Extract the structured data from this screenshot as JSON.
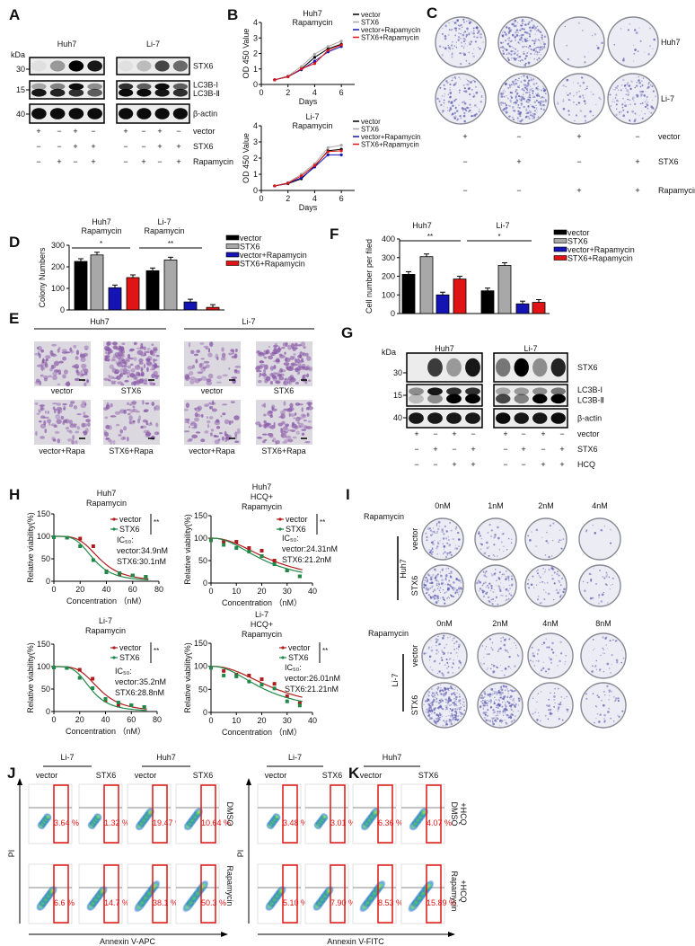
{
  "panel_letters": [
    "A",
    "B",
    "C",
    "D",
    "E",
    "F",
    "G",
    "H",
    "I",
    "J",
    "K"
  ],
  "colors": {
    "vector": "#000000",
    "STX6": "#a8a8a8",
    "vector_rapa": "#1414b4",
    "STX6_rapa": "#e01414",
    "h_vector": "#b01c1c",
    "h_STX6": "#1f8a48",
    "flow_gate": "#e01414",
    "dish_stain": "#5a5ab0",
    "micro_stain": "#8a5aa8"
  },
  "panel_a": {
    "kda": "kDa",
    "cells": [
      "Huh7",
      "Li-7"
    ],
    "markers": [
      "30",
      "15",
      "40"
    ],
    "bands": [
      "STX6",
      "LC3B-I",
      "LC3B-Ⅱ",
      "β-actin"
    ],
    "row_labels": [
      "vector",
      "STX6",
      "Rapamycin"
    ],
    "signs": [
      [
        "+",
        "−",
        "+",
        "−",
        "+",
        "−",
        "+",
        "−"
      ],
      [
        "−",
        "−",
        "+",
        "+",
        "−",
        "−",
        "+",
        "+"
      ],
      [
        "−",
        "+",
        "−",
        "+",
        "−",
        "+",
        "−",
        "+"
      ]
    ],
    "intensity": {
      "STX6": [
        [
          0.05,
          0.35,
          1,
          0.9
        ],
        [
          0.05,
          0.2,
          0.7,
          0.55
        ]
      ],
      "LC3B_I": [
        [
          0.3,
          0.45,
          0.95,
          0.4
        ],
        [
          0.8,
          0.6,
          0.95,
          0.6
        ]
      ],
      "LC3B_II": [
        [
          0.9,
          0.85,
          0.8,
          0.6
        ],
        [
          0.95,
          0.95,
          0.9,
          0.8
        ]
      ],
      "actin": [
        [
          0.95,
          0.95,
          0.95,
          0.95
        ],
        [
          0.95,
          0.95,
          0.95,
          0.95
        ]
      ]
    }
  },
  "panel_c": {
    "cells": [
      "Huh7",
      "Li-7"
    ],
    "row_labels": [
      "vector",
      "STX6",
      "Rapamycin"
    ],
    "signs": [
      [
        "+",
        "−",
        "+",
        "−"
      ],
      [
        "−",
        "+",
        "−",
        "+"
      ],
      [
        "−",
        "−",
        "+",
        "+"
      ]
    ],
    "colony_density": [
      [
        0.45,
        0.8,
        0.05,
        0.08
      ],
      [
        0.5,
        0.95,
        0.2,
        0.45
      ]
    ]
  },
  "panel_e": {
    "cells": [
      "Huh7",
      "Li-7"
    ],
    "labels": [
      [
        "vector",
        "STX6",
        "vector",
        "STX6"
      ],
      [
        "vector+Rapa",
        "STX6+Rapa",
        "vector+Rapa",
        "STX6+Rapa"
      ]
    ],
    "density": [
      [
        0.5,
        0.95,
        0.35,
        0.9
      ],
      [
        0.45,
        0.4,
        0.4,
        0.55
      ]
    ]
  },
  "panel_g": {
    "kda": "kDa",
    "cells": [
      "Huh7",
      "Li-7"
    ],
    "markers": [
      "30",
      "15",
      "40"
    ],
    "bands": [
      "STX6",
      "LC3B-I",
      "LC3B-Ⅱ",
      "β-actin"
    ],
    "row_labels": [
      "vector",
      "STX6",
      "HCQ"
    ],
    "signs": [
      [
        "+",
        "−",
        "+",
        "−",
        "+",
        "−",
        "+",
        "−"
      ],
      [
        "−",
        "+",
        "−",
        "+",
        "−",
        "+",
        "−",
        "+"
      ],
      [
        "−",
        "−",
        "+",
        "+",
        "−",
        "−",
        "+",
        "+"
      ]
    ],
    "intensity": {
      "STX6": [
        [
          0,
          0.75,
          0.35,
          0.9
        ],
        [
          0.5,
          1,
          0.4,
          0.85
        ]
      ],
      "LC3B_I": [
        [
          0.4,
          0.9,
          0.8,
          0.8
        ],
        [
          0.3,
          0.35,
          0.4,
          0.5
        ]
      ],
      "LC3B_II": [
        [
          0.2,
          0.4,
          1,
          1
        ],
        [
          0.7,
          0.45,
          1,
          1
        ]
      ],
      "actin": [
        [
          0.9,
          0.9,
          0.9,
          0.9
        ],
        [
          0.95,
          0.9,
          0.9,
          0.95
        ]
      ]
    }
  },
  "panel_i": {
    "drug_label": "Rapamycin",
    "blocks": [
      {
        "cell": "Huh7",
        "doses": [
          "0nM",
          "1nM",
          "2nM",
          "4nM"
        ],
        "rows": [
          "vector",
          "STX6"
        ],
        "density": [
          [
            0.3,
            0.15,
            0.08,
            0.03
          ],
          [
            0.55,
            0.35,
            0.2,
            0.12
          ]
        ]
      },
      {
        "cell": "Li-7",
        "doses": [
          "0nM",
          "2nM",
          "4nM",
          "8nM"
        ],
        "rows": [
          "vector",
          "STX6"
        ],
        "density": [
          [
            0.3,
            0.2,
            0.15,
            0.15
          ],
          [
            1,
            0.75,
            0.18,
            0.15
          ]
        ]
      }
    ]
  },
  "panel_j": {
    "cells": [
      "Li-7",
      "Huh7"
    ],
    "columns": [
      "vector",
      "STX6",
      "vector",
      "STX6"
    ],
    "rows": [
      "DMSO",
      "Rapamycin"
    ],
    "ylabel": "PI",
    "xlabel": "Annexin V-APC",
    "percents": [
      [
        "3.64 %",
        "1.32 %",
        "19.47 %",
        "10.64 %"
      ],
      [
        "6.6 %",
        "14.7 %",
        "38.1 %",
        "50.3 %"
      ]
    ]
  },
  "panel_k": {
    "cells": [
      "Li-7",
      "Huh7"
    ],
    "columns": [
      "vector",
      "STX6",
      "vector",
      "STX6"
    ],
    "rows": [
      [
        "DMSO",
        "+HCQ"
      ],
      [
        "Rapamycin",
        "+HCQ"
      ]
    ],
    "ylabel": "PI",
    "xlabel": "Annexin V-FITC",
    "percents": [
      [
        "3.48 %",
        "3.01 %",
        "6.36 %",
        "4.07 %"
      ],
      [
        "5.10 %",
        "7.90 %",
        "8.53 %",
        "15.89 %"
      ]
    ]
  },
  "chart_data": [
    {
      "id": "B1",
      "type": "line",
      "title": [
        "Huh7",
        "Rapamycin"
      ],
      "xlabel": "Days",
      "ylabel": "OD 450 Value",
      "xlim": [
        0,
        7
      ],
      "ylim": [
        0,
        4
      ],
      "xticks": [
        0,
        2,
        4,
        6
      ],
      "yticks": [
        0,
        1,
        2,
        3,
        4
      ],
      "x": [
        1,
        2,
        3,
        4,
        5,
        6
      ],
      "series": [
        {
          "name": "vector",
          "values": [
            0.3,
            0.5,
            1.0,
            1.75,
            2.3,
            2.6
          ]
        },
        {
          "name": "STX6",
          "values": [
            0.3,
            0.55,
            1.15,
            1.95,
            2.45,
            2.8
          ]
        },
        {
          "name": "vector+Rapamycin",
          "values": [
            0.3,
            0.5,
            0.95,
            1.5,
            2.1,
            2.45
          ]
        },
        {
          "name": "STX6+Rapamycin",
          "values": [
            0.3,
            0.5,
            1.0,
            1.35,
            2.2,
            2.55
          ]
        }
      ]
    },
    {
      "id": "B2",
      "type": "line",
      "title": [
        "Li-7",
        "Rapamycin"
      ],
      "xlabel": "Days",
      "ylabel": "OD 450 Value",
      "xlim": [
        0,
        7
      ],
      "ylim": [
        0,
        4
      ],
      "xticks": [
        0,
        2,
        4,
        6
      ],
      "yticks": [
        0,
        1,
        2,
        3,
        4
      ],
      "x": [
        1,
        2,
        3,
        4,
        5,
        6
      ],
      "series": [
        {
          "name": "vector",
          "values": [
            0.28,
            0.42,
            0.72,
            1.5,
            2.45,
            2.55
          ]
        },
        {
          "name": "STX6",
          "values": [
            0.28,
            0.48,
            1.0,
            1.65,
            2.65,
            2.8
          ]
        },
        {
          "name": "vector+Rapamycin",
          "values": [
            0.28,
            0.45,
            0.78,
            1.45,
            2.2,
            2.2
          ]
        },
        {
          "name": "STX6+Rapamycin",
          "values": [
            0.28,
            0.45,
            0.9,
            1.55,
            2.4,
            2.45
          ]
        }
      ]
    },
    {
      "id": "D",
      "type": "bar",
      "groups": [
        {
          "title": [
            "Huh7",
            "Rapamycin"
          ],
          "sig": "*"
        },
        {
          "title": [
            "Li-7",
            "Rapamycin"
          ],
          "sig": "**"
        }
      ],
      "ylabel": "Colony  Numbers",
      "ylim": [
        0,
        300
      ],
      "yticks": [
        0,
        100,
        200,
        300
      ],
      "series": [
        {
          "name": "vector",
          "values": [
            225,
            182
          ]
        },
        {
          "name": "STX6",
          "values": [
            255,
            232
          ]
        },
        {
          "name": "vector+Rapamycin",
          "values": [
            103,
            37
          ]
        },
        {
          "name": "STX6+Rapamycin",
          "values": [
            150,
            12
          ]
        }
      ]
    },
    {
      "id": "F",
      "type": "bar",
      "groups": [
        {
          "title": [
            "Huh7"
          ],
          "sig": "**"
        },
        {
          "title": [
            "Li-7"
          ],
          "sig": "*"
        }
      ],
      "ylabel": "Cell number per filed",
      "ylim": [
        0,
        400
      ],
      "yticks": [
        0,
        100,
        200,
        300,
        400
      ],
      "series": [
        {
          "name": "vector",
          "values": [
            210,
            122
          ]
        },
        {
          "name": "STX6",
          "values": [
            305,
            258
          ]
        },
        {
          "name": "vector+Rapamycin",
          "values": [
            100,
            52
          ]
        },
        {
          "name": "STX6+Rapamycin",
          "values": [
            185,
            60
          ]
        }
      ]
    },
    {
      "id": "H1",
      "type": "scatter",
      "title": [
        "Huh7",
        "Rapamycin"
      ],
      "xlabel": "Concentration （nM）",
      "ylabel": "Relative viability(%)",
      "xlim": [
        0,
        80
      ],
      "ylim": [
        0,
        150
      ],
      "xticks": [
        0,
        20,
        40,
        60,
        80
      ],
      "yticks": [
        0,
        50,
        100,
        150
      ],
      "sig": "**",
      "ic50_label": "IC₅₀:",
      "ic50_text": [
        "vector:34.9nM",
        "STX6:30.1nM"
      ],
      "ic50": [
        34.9,
        30.1
      ],
      "x": [
        0,
        10,
        20,
        30,
        40,
        50,
        60,
        70
      ],
      "series": [
        {
          "name": "vector",
          "values": [
            98,
            97,
            95,
            78,
            22,
            15,
            13,
            10
          ]
        },
        {
          "name": "STX6",
          "values": [
            98,
            97,
            78,
            47,
            20,
            18,
            13,
            10
          ]
        }
      ]
    },
    {
      "id": "H2",
      "type": "scatter",
      "title": [
        "Huh7",
        "HCQ+",
        "Rapamycin"
      ],
      "xlabel": "Concentration （nM）",
      "ylabel": "Relative viability(%)",
      "xlim": [
        0,
        40
      ],
      "ylim": [
        0,
        150
      ],
      "xticks": [
        0,
        10,
        20,
        30,
        40
      ],
      "yticks": [
        0,
        50,
        100,
        150
      ],
      "sig": "**",
      "ic50_label": "IC₅₀:",
      "ic50_text": [
        "vector:24.31nM",
        "STX6:21.2nM"
      ],
      "ic50": [
        24.31,
        21.2
      ],
      "x": [
        0,
        5,
        10,
        15,
        20,
        25,
        30,
        35
      ],
      "series": [
        {
          "name": "vector",
          "values": [
            97,
            93,
            92,
            78,
            72,
            50,
            28,
            15
          ]
        },
        {
          "name": "STX6",
          "values": [
            95,
            85,
            78,
            70,
            60,
            42,
            28,
            15
          ]
        }
      ]
    },
    {
      "id": "H3",
      "type": "scatter",
      "title": [
        "Li-7",
        "Rapamycin"
      ],
      "xlabel": "Concentration （nM）",
      "ylabel": "Relative viability(%)",
      "xlim": [
        0,
        80
      ],
      "ylim": [
        0,
        150
      ],
      "xticks": [
        0,
        20,
        40,
        60,
        80
      ],
      "yticks": [
        0,
        50,
        100,
        150
      ],
      "sig": "**",
      "ic50_label": "IC₅₀:",
      "ic50_text": [
        "vector:35.2nM",
        "STX6:28.8nM"
      ],
      "ic50": [
        35.2,
        28.8
      ],
      "x": [
        0,
        10,
        20,
        30,
        40,
        50,
        60,
        70
      ],
      "series": [
        {
          "name": "vector",
          "values": [
            98,
            97,
            93,
            73,
            25,
            13,
            14,
            10
          ]
        },
        {
          "name": "STX6",
          "values": [
            98,
            97,
            75,
            52,
            28,
            20,
            14,
            10
          ]
        }
      ]
    },
    {
      "id": "H4",
      "type": "scatter",
      "title": [
        "Li-7",
        "HCQ+",
        "Rapamycin"
      ],
      "xlabel": "Concentration （nM）",
      "ylabel": "Relative viability(%)",
      "xlim": [
        0,
        40
      ],
      "ylim": [
        0,
        150
      ],
      "xticks": [
        0,
        10,
        20,
        30,
        40
      ],
      "yticks": [
        0,
        50,
        100,
        150
      ],
      "sig": "**",
      "ic50_label": "IC₅₀:",
      "ic50_text": [
        "vector:26.01nM",
        "STX6:21.21nM"
      ],
      "ic50": [
        26.01,
        21.21
      ],
      "x": [
        0,
        5,
        10,
        15,
        20,
        25,
        30,
        35
      ],
      "series": [
        {
          "name": "vector",
          "values": [
            97,
            90,
            82,
            80,
            72,
            62,
            35,
            20
          ]
        },
        {
          "name": "STX6",
          "values": [
            97,
            80,
            78,
            67,
            60,
            52,
            24,
            15
          ]
        }
      ]
    }
  ]
}
